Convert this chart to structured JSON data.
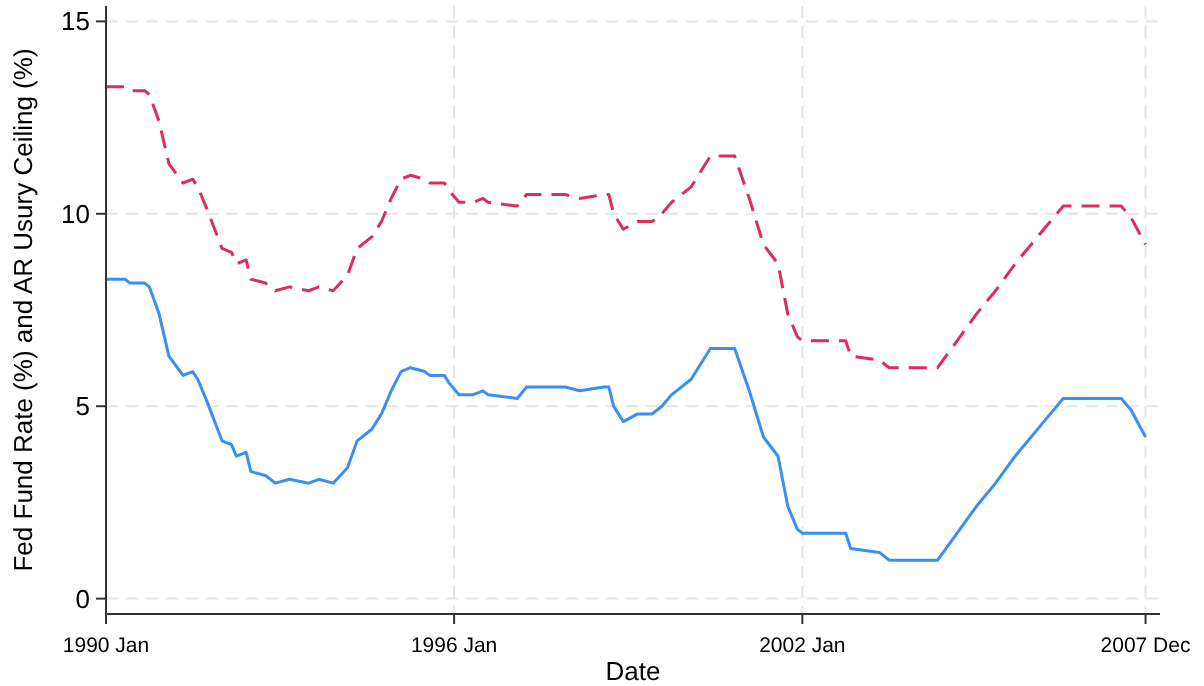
{
  "chart_data": {
    "type": "line",
    "xlabel": "Date",
    "ylabel": "Fed Fund Rate (%) and AR Usury Ceiling (%)",
    "x": [
      "1990-01",
      "1990-05",
      "1990-06",
      "1990-09",
      "1990-10",
      "1990-12",
      "1991-02",
      "1991-05",
      "1991-07",
      "1991-08",
      "1991-10",
      "1992-01",
      "1992-03",
      "1992-04",
      "1992-06",
      "1992-07",
      "1992-10",
      "1992-12",
      "1993-03",
      "1993-07",
      "1993-09",
      "1993-12",
      "1994-03",
      "1994-05",
      "1994-08",
      "1994-10",
      "1994-12",
      "1995-02",
      "1995-04",
      "1995-07",
      "1995-08",
      "1995-11",
      "1995-12",
      "1996-02",
      "1996-05",
      "1996-07",
      "1996-08",
      "1997-02",
      "1997-04",
      "1997-12",
      "1998-03",
      "1998-08",
      "1998-09",
      "1998-10",
      "1998-12",
      "1999-03",
      "1999-06",
      "1999-08",
      "1999-10",
      "1999-11",
      "2000-02",
      "2000-06",
      "2000-11",
      "2001-02",
      "2001-05",
      "2001-08",
      "2001-10",
      "2001-12",
      "2002-01",
      "2002-10",
      "2002-11",
      "2003-05",
      "2003-07",
      "2004-05",
      "2004-09",
      "2005-01",
      "2005-05",
      "2005-09",
      "2006-03",
      "2006-07",
      "2007-07",
      "2007-09",
      "2007-12"
    ],
    "series": [
      {
        "color": "#3b8ff0",
        "line_style": "solid",
        "values": [
          8.3,
          8.3,
          8.2,
          8.2,
          8.1,
          7.4,
          6.3,
          5.8,
          5.9,
          5.7,
          5.1,
          4.1,
          4.0,
          3.7,
          3.8,
          3.3,
          3.2,
          3.0,
          3.1,
          3.0,
          3.1,
          3.0,
          3.4,
          4.1,
          4.4,
          4.8,
          5.4,
          5.9,
          6.0,
          5.9,
          5.8,
          5.8,
          5.6,
          5.3,
          5.3,
          5.4,
          5.3,
          5.2,
          5.5,
          5.5,
          5.4,
          5.5,
          5.5,
          5.0,
          4.6,
          4.8,
          4.8,
          5.0,
          5.3,
          5.4,
          5.7,
          6.5,
          6.5,
          5.4,
          4.2,
          3.7,
          2.4,
          1.8,
          1.7,
          1.7,
          1.3,
          1.2,
          1.0,
          1.0,
          1.7,
          2.4,
          3.0,
          3.7,
          4.6,
          5.2,
          5.2,
          4.9,
          4.2
        ]
      },
      {
        "color": "#dc2e5c",
        "line_style": "dashed",
        "values": [
          13.3,
          13.3,
          13.2,
          13.2,
          13.1,
          12.4,
          11.3,
          10.8,
          10.9,
          10.7,
          10.1,
          9.1,
          9.0,
          8.7,
          8.8,
          8.3,
          8.2,
          8.0,
          8.1,
          8.0,
          8.1,
          8.0,
          8.4,
          9.1,
          9.4,
          9.8,
          10.4,
          10.9,
          11.0,
          10.9,
          10.8,
          10.8,
          10.6,
          10.3,
          10.3,
          10.4,
          10.3,
          10.2,
          10.5,
          10.5,
          10.4,
          10.5,
          10.5,
          10.0,
          9.6,
          9.8,
          9.8,
          10.0,
          10.3,
          10.4,
          10.7,
          11.5,
          11.5,
          10.4,
          9.2,
          8.7,
          7.4,
          6.8,
          6.7,
          6.7,
          6.3,
          6.2,
          6.0,
          6.0,
          6.7,
          7.4,
          8.0,
          8.7,
          9.6,
          10.2,
          10.2,
          9.9,
          9.2
        ]
      }
    ],
    "xlim": [
      "1990-01",
      "2008-03"
    ],
    "xticks": [
      {
        "value": "1990-01",
        "label": "1990 Jan"
      },
      {
        "value": "1996-01",
        "label": "1996 Jan"
      },
      {
        "value": "2002-01",
        "label": "2002 Jan"
      },
      {
        "value": "2007-12",
        "label": "2007 Dec"
      }
    ],
    "ylim": [
      -0.4,
      15.4
    ],
    "yticks": [
      0,
      5,
      10,
      15
    ],
    "grid": true
  }
}
